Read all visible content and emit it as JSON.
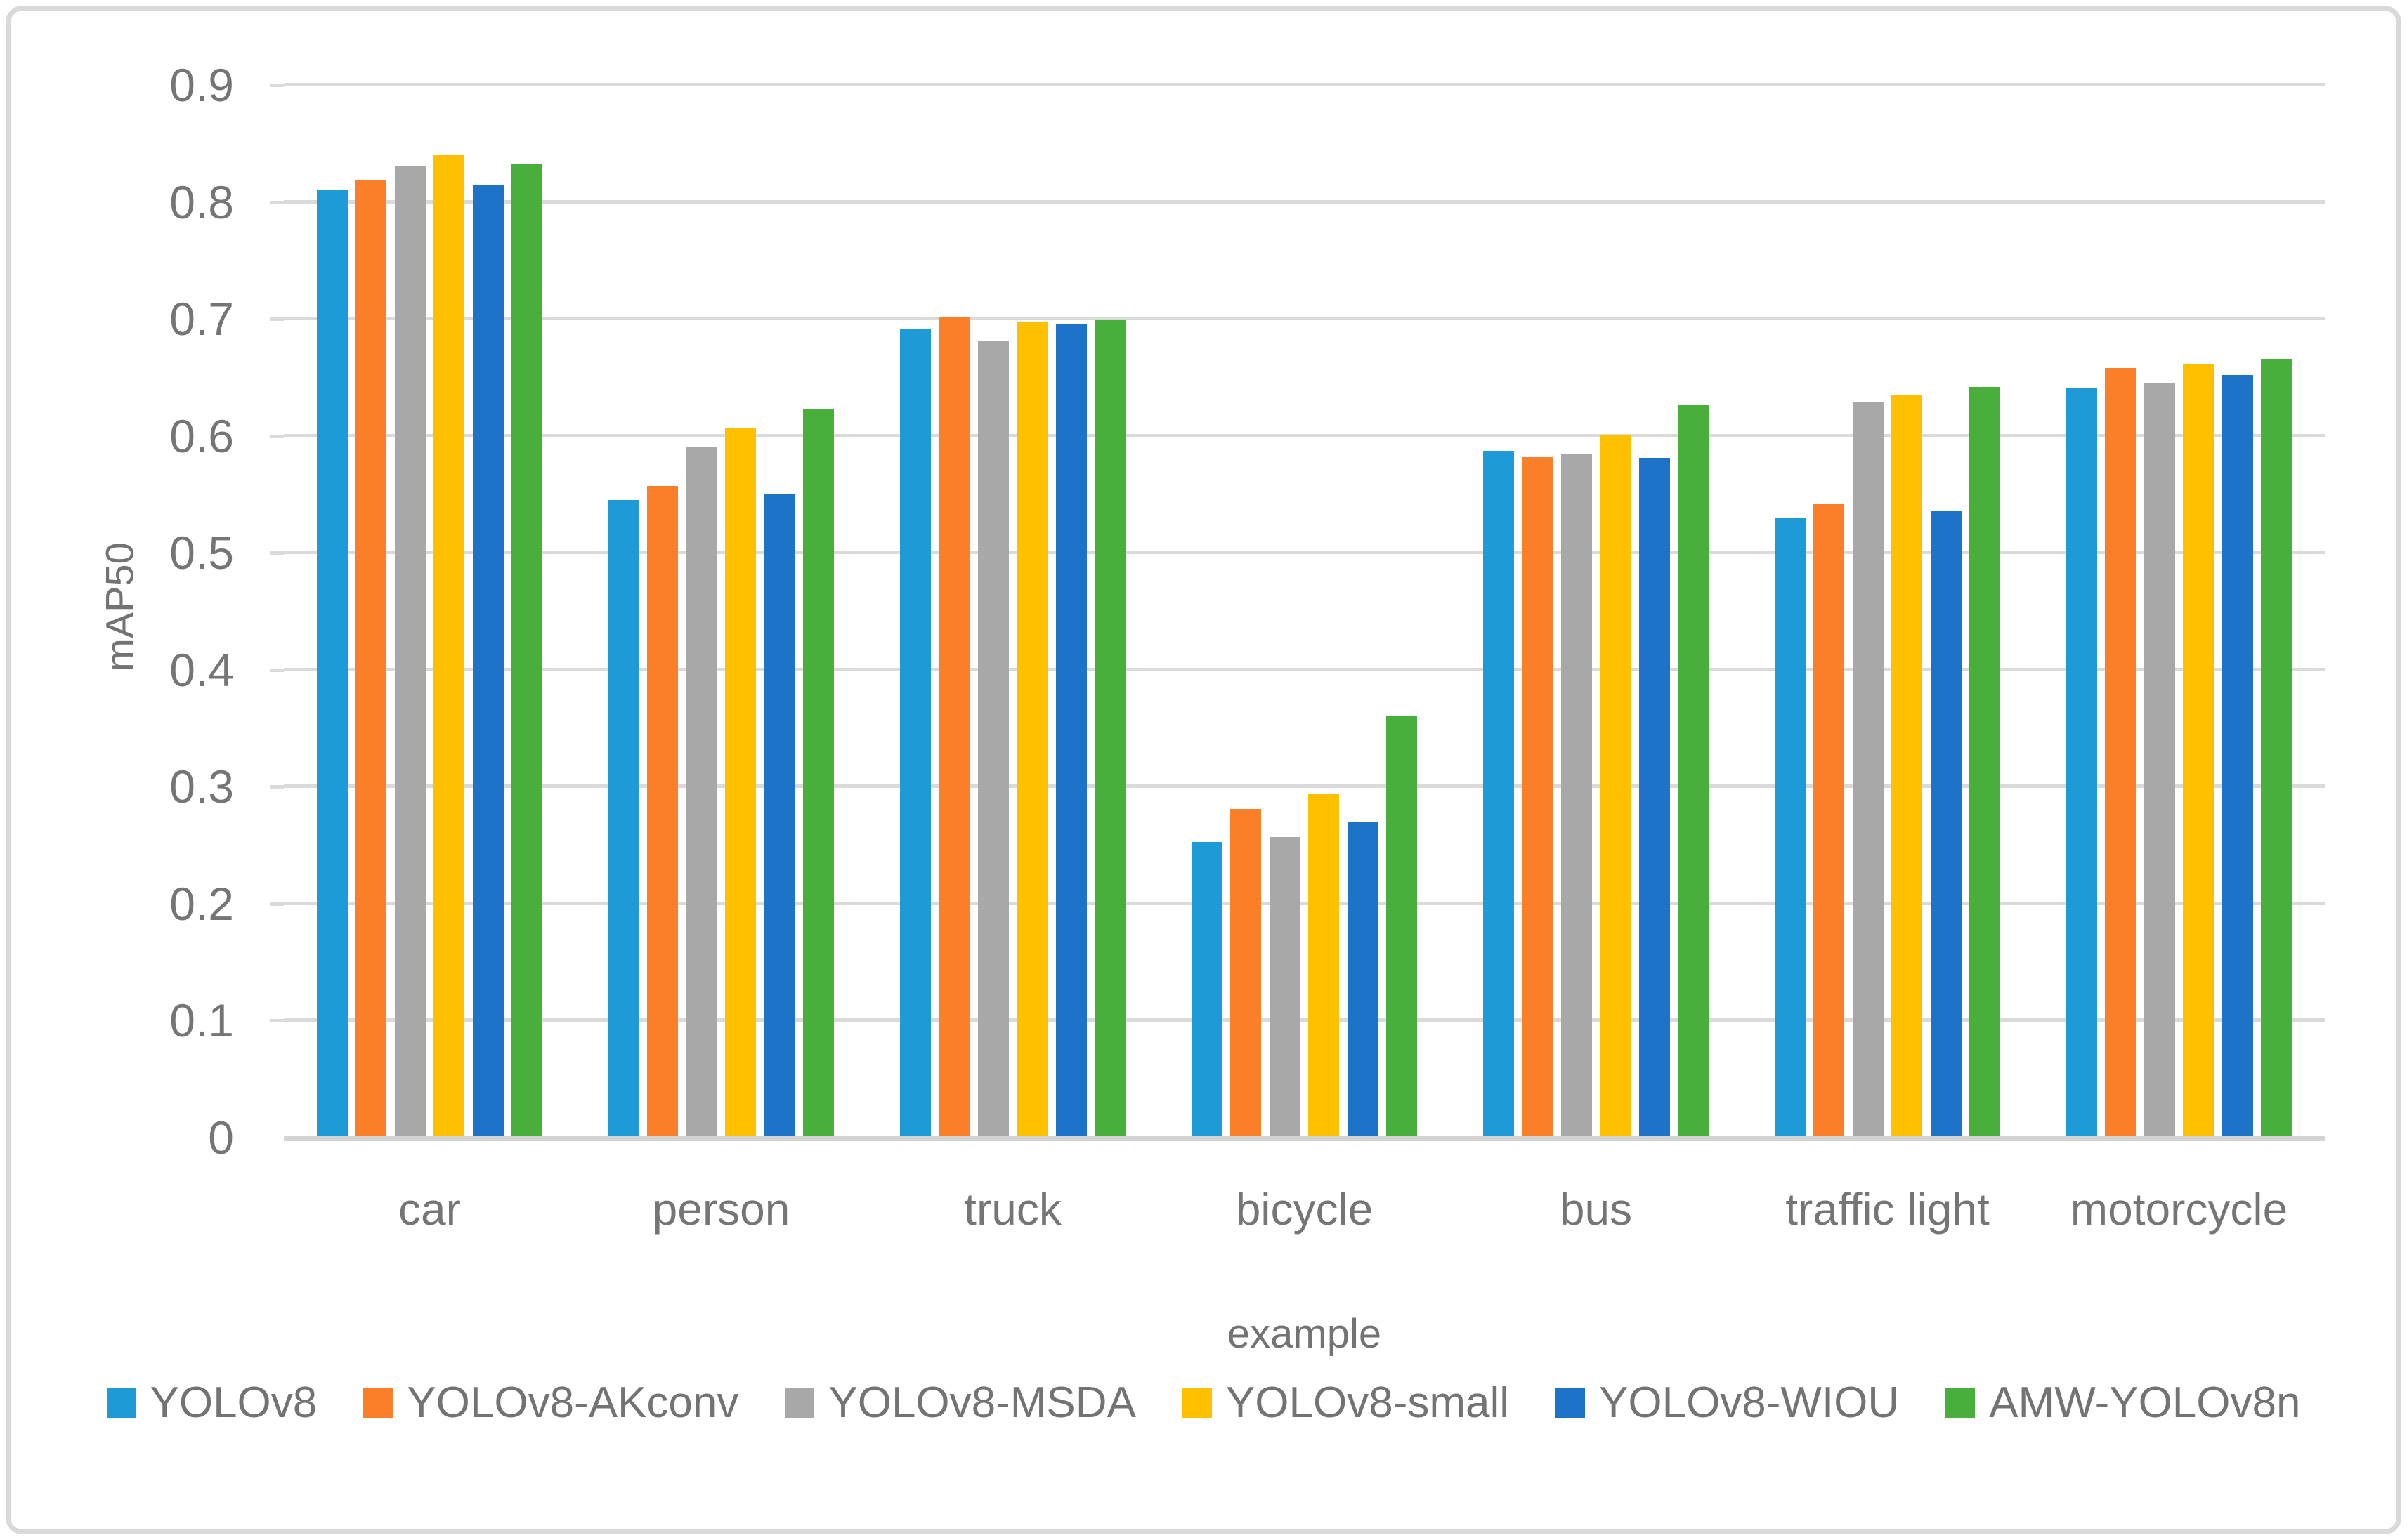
{
  "chart_data": {
    "type": "bar",
    "title": "",
    "xlabel": "example",
    "ylabel": "mAP50",
    "ylim": [
      0,
      0.9
    ],
    "ytick_step": 0.1,
    "ytick_labels": [
      "0",
      "0.1",
      "0.2",
      "0.3",
      "0.4",
      "0.5",
      "0.6",
      "0.7",
      "0.8",
      "0.9"
    ],
    "grid": true,
    "legend_position": "bottom",
    "categories": [
      "car",
      "person",
      "truck",
      "bicycle",
      "bus",
      "traffic light",
      "motorcycle"
    ],
    "series": [
      {
        "name": "YOLOv8",
        "color": "#1E9AD6",
        "values": [
          0.81,
          0.545,
          0.691,
          0.253,
          0.587,
          0.53,
          0.641
        ]
      },
      {
        "name": "YOLOv8-AKconv",
        "color": "#FB7E28",
        "values": [
          0.819,
          0.557,
          0.702,
          0.281,
          0.582,
          0.542,
          0.658
        ]
      },
      {
        "name": "YOLOv8-MSDA",
        "color": "#A8A8A8",
        "values": [
          0.831,
          0.59,
          0.681,
          0.257,
          0.584,
          0.629,
          0.645
        ]
      },
      {
        "name": "YOLOv8-small",
        "color": "#FFC000",
        "values": [
          0.84,
          0.607,
          0.697,
          0.294,
          0.601,
          0.635,
          0.661
        ]
      },
      {
        "name": "YOLOv8-WIOU",
        "color": "#1C73C8",
        "values": [
          0.814,
          0.55,
          0.696,
          0.27,
          0.581,
          0.536,
          0.652
        ]
      },
      {
        "name": "AMW-YOLOv8n",
        "color": "#48AE3C",
        "values": [
          0.833,
          0.623,
          0.699,
          0.361,
          0.626,
          0.642,
          0.666
        ]
      }
    ],
    "colors": {
      "gridline": "#DADADA",
      "axis_line": "#D4D4D4",
      "text": "#737373",
      "background": "#FFFFFF",
      "frame_border": "#D9D9D9"
    }
  }
}
